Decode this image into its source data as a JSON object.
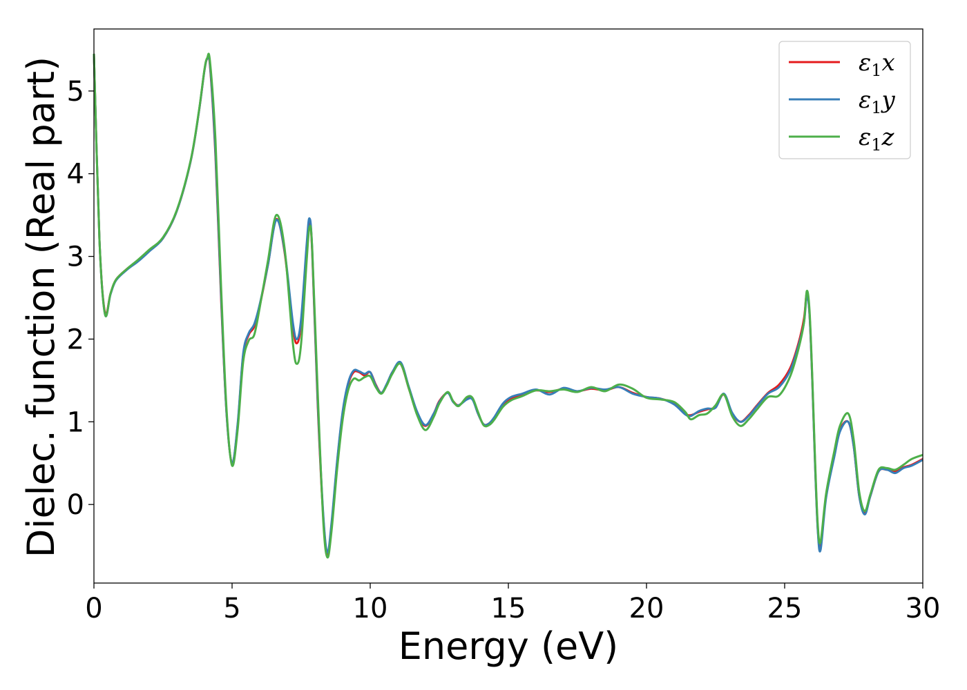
{
  "chart_data": {
    "type": "line",
    "xlabel": "Energy (eV)",
    "ylabel": "Dielec. function (Real part)",
    "xlim": [
      0,
      30
    ],
    "ylim": [
      -0.95,
      5.75
    ],
    "xticks": [
      0,
      5,
      10,
      15,
      20,
      25,
      30
    ],
    "yticks": [
      0,
      1,
      2,
      3,
      4,
      5
    ],
    "grid": false,
    "legend_position": "top-right",
    "series": [
      {
        "name": "ε1x",
        "legend": {
          "base": "ε",
          "sub": "1",
          "var": "x"
        },
        "color": "#e41a1c",
        "x": [
          0,
          0.2,
          0.4,
          0.6,
          0.8,
          1.2,
          1.6,
          2.0,
          2.5,
          3.0,
          3.5,
          3.8,
          4.0,
          4.1,
          4.2,
          4.4,
          4.6,
          4.8,
          5.0,
          5.2,
          5.4,
          5.6,
          5.8,
          6.0,
          6.3,
          6.6,
          6.9,
          7.2,
          7.35,
          7.5,
          7.7,
          7.8,
          7.9,
          8.1,
          8.3,
          8.45,
          8.6,
          8.8,
          9.0,
          9.2,
          9.4,
          9.6,
          9.8,
          10.0,
          10.2,
          10.4,
          10.6,
          10.8,
          11.1,
          11.4,
          11.7,
          12.0,
          12.3,
          12.5,
          12.8,
          13.0,
          13.2,
          13.5,
          13.7,
          13.9,
          14.1,
          14.3,
          14.5,
          14.8,
          15.1,
          15.5,
          16.0,
          16.5,
          17.0,
          17.5,
          18.0,
          18.5,
          19.0,
          19.5,
          20.0,
          20.5,
          21.0,
          21.4,
          21.6,
          21.9,
          22.2,
          22.5,
          22.8,
          23.1,
          23.4,
          23.7,
          24.0,
          24.4,
          24.8,
          25.2,
          25.5,
          25.7,
          25.8,
          25.9,
          26.0,
          26.1,
          26.2,
          26.3,
          26.5,
          26.8,
          27.0,
          27.3,
          27.5,
          27.7,
          27.9,
          28.1,
          28.4,
          28.7,
          29.0,
          29.3,
          29.6,
          30.0
        ],
        "values": [
          5.45,
          3.2,
          2.32,
          2.55,
          2.72,
          2.85,
          2.95,
          3.07,
          3.22,
          3.55,
          4.15,
          4.75,
          5.25,
          5.39,
          5.3,
          4.2,
          2.5,
          1.1,
          0.5,
          0.95,
          1.8,
          2.05,
          2.15,
          2.4,
          2.9,
          3.45,
          3.05,
          2.15,
          1.95,
          2.2,
          3.1,
          3.42,
          3.05,
          1.2,
          -0.15,
          -0.6,
          -0.25,
          0.5,
          1.1,
          1.45,
          1.6,
          1.6,
          1.56,
          1.6,
          1.45,
          1.35,
          1.45,
          1.6,
          1.7,
          1.4,
          1.1,
          0.95,
          1.1,
          1.25,
          1.35,
          1.25,
          1.2,
          1.28,
          1.28,
          1.1,
          0.97,
          0.98,
          1.05,
          1.2,
          1.28,
          1.33,
          1.38,
          1.36,
          1.4,
          1.37,
          1.4,
          1.38,
          1.42,
          1.35,
          1.3,
          1.28,
          1.22,
          1.1,
          1.08,
          1.12,
          1.15,
          1.18,
          1.33,
          1.1,
          1.0,
          1.08,
          1.2,
          1.35,
          1.45,
          1.65,
          1.95,
          2.25,
          2.55,
          2.3,
          1.5,
          0.5,
          -0.3,
          -0.5,
          0.1,
          0.6,
          0.9,
          1.0,
          0.7,
          0.1,
          -0.1,
          0.1,
          0.4,
          0.42,
          0.4,
          0.45,
          0.48,
          0.55
        ]
      },
      {
        "name": "ε1y",
        "legend": {
          "base": "ε",
          "sub": "1",
          "var": "y"
        },
        "color": "#377eb8",
        "x": [
          0,
          0.2,
          0.4,
          0.6,
          0.8,
          1.2,
          1.6,
          2.0,
          2.5,
          3.0,
          3.5,
          3.8,
          4.0,
          4.1,
          4.2,
          4.4,
          4.6,
          4.8,
          5.0,
          5.2,
          5.4,
          5.6,
          5.8,
          6.0,
          6.3,
          6.6,
          6.9,
          7.2,
          7.35,
          7.5,
          7.7,
          7.8,
          7.9,
          8.1,
          8.3,
          8.45,
          8.6,
          8.8,
          9.0,
          9.2,
          9.4,
          9.6,
          9.8,
          10.0,
          10.2,
          10.4,
          10.6,
          10.8,
          11.1,
          11.4,
          11.7,
          12.0,
          12.3,
          12.5,
          12.8,
          13.0,
          13.2,
          13.5,
          13.7,
          13.9,
          14.1,
          14.3,
          14.5,
          14.8,
          15.1,
          15.5,
          16.0,
          16.5,
          17.0,
          17.5,
          18.0,
          18.5,
          19.0,
          19.5,
          20.0,
          20.5,
          21.0,
          21.4,
          21.6,
          21.9,
          22.2,
          22.5,
          22.8,
          23.1,
          23.4,
          23.7,
          24.0,
          24.4,
          24.8,
          25.2,
          25.5,
          25.7,
          25.8,
          25.9,
          26.0,
          26.1,
          26.2,
          26.3,
          26.5,
          26.8,
          27.0,
          27.3,
          27.5,
          27.7,
          27.9,
          28.1,
          28.4,
          28.7,
          29.0,
          29.3,
          29.6,
          30.0
        ],
        "values": [
          5.45,
          3.2,
          2.3,
          2.54,
          2.71,
          2.84,
          2.94,
          3.06,
          3.22,
          3.55,
          4.15,
          4.75,
          5.25,
          5.39,
          5.32,
          4.25,
          2.55,
          1.1,
          0.5,
          0.97,
          1.82,
          2.07,
          2.18,
          2.42,
          2.9,
          3.44,
          3.07,
          2.2,
          2.0,
          2.25,
          3.15,
          3.46,
          3.08,
          1.25,
          -0.12,
          -0.58,
          -0.22,
          0.52,
          1.12,
          1.47,
          1.62,
          1.61,
          1.58,
          1.6,
          1.44,
          1.35,
          1.46,
          1.6,
          1.72,
          1.42,
          1.12,
          0.96,
          1.1,
          1.24,
          1.35,
          1.24,
          1.2,
          1.27,
          1.27,
          1.1,
          0.97,
          0.98,
          1.06,
          1.22,
          1.3,
          1.34,
          1.39,
          1.33,
          1.41,
          1.37,
          1.41,
          1.39,
          1.42,
          1.34,
          1.3,
          1.28,
          1.21,
          1.09,
          1.07,
          1.13,
          1.16,
          1.17,
          1.34,
          1.11,
          1.0,
          1.07,
          1.19,
          1.34,
          1.42,
          1.62,
          1.92,
          2.2,
          2.52,
          2.3,
          1.5,
          0.48,
          -0.32,
          -0.55,
          0.08,
          0.58,
          0.88,
          1.0,
          0.7,
          0.1,
          -0.12,
          0.1,
          0.4,
          0.42,
          0.38,
          0.44,
          0.47,
          0.54
        ]
      },
      {
        "name": "ε1z",
        "legend": {
          "base": "ε",
          "sub": "1",
          "var": "z"
        },
        "color": "#4daf4a",
        "x": [
          0,
          0.2,
          0.4,
          0.6,
          0.8,
          1.2,
          1.6,
          2.0,
          2.5,
          3.0,
          3.5,
          3.8,
          4.0,
          4.1,
          4.2,
          4.4,
          4.6,
          4.8,
          5.0,
          5.2,
          5.4,
          5.6,
          5.8,
          6.0,
          6.3,
          6.6,
          6.9,
          7.2,
          7.35,
          7.5,
          7.7,
          7.8,
          7.9,
          8.1,
          8.3,
          8.45,
          8.6,
          8.8,
          9.0,
          9.2,
          9.4,
          9.6,
          9.8,
          10.0,
          10.2,
          10.4,
          10.6,
          10.8,
          11.1,
          11.4,
          11.7,
          12.0,
          12.3,
          12.5,
          12.8,
          13.0,
          13.2,
          13.5,
          13.7,
          13.9,
          14.1,
          14.3,
          14.5,
          14.8,
          15.1,
          15.5,
          16.0,
          16.5,
          17.0,
          17.5,
          18.0,
          18.5,
          19.0,
          19.5,
          20.0,
          20.5,
          21.0,
          21.4,
          21.6,
          21.9,
          22.2,
          22.5,
          22.8,
          23.1,
          23.4,
          23.7,
          24.0,
          24.4,
          24.8,
          25.2,
          25.5,
          25.7,
          25.8,
          25.9,
          26.0,
          26.1,
          26.2,
          26.3,
          26.5,
          26.8,
          27.0,
          27.3,
          27.5,
          27.7,
          27.9,
          28.1,
          28.4,
          28.7,
          29.0,
          29.3,
          29.6,
          30.0
        ],
        "values": [
          5.45,
          3.2,
          2.3,
          2.55,
          2.72,
          2.85,
          2.96,
          3.08,
          3.23,
          3.56,
          4.16,
          4.76,
          5.26,
          5.4,
          5.36,
          4.4,
          2.65,
          1.15,
          0.47,
          0.9,
          1.72,
          1.98,
          2.05,
          2.38,
          2.95,
          3.5,
          3.1,
          1.95,
          1.7,
          1.95,
          2.95,
          3.35,
          3.1,
          1.35,
          -0.2,
          -0.64,
          -0.32,
          0.42,
          1.02,
          1.38,
          1.52,
          1.5,
          1.54,
          1.55,
          1.42,
          1.34,
          1.44,
          1.58,
          1.7,
          1.4,
          1.08,
          0.9,
          1.06,
          1.22,
          1.36,
          1.25,
          1.19,
          1.3,
          1.29,
          1.12,
          0.96,
          0.96,
          1.03,
          1.18,
          1.26,
          1.31,
          1.38,
          1.37,
          1.39,
          1.36,
          1.42,
          1.37,
          1.45,
          1.4,
          1.29,
          1.27,
          1.24,
          1.12,
          1.03,
          1.08,
          1.1,
          1.2,
          1.33,
          1.07,
          0.95,
          1.03,
          1.15,
          1.3,
          1.32,
          1.55,
          1.88,
          2.2,
          2.58,
          2.35,
          1.55,
          0.55,
          -0.25,
          -0.45,
          0.13,
          0.65,
          0.95,
          1.1,
          0.78,
          0.15,
          -0.08,
          0.12,
          0.42,
          0.44,
          0.42,
          0.48,
          0.55,
          0.6
        ]
      }
    ]
  }
}
